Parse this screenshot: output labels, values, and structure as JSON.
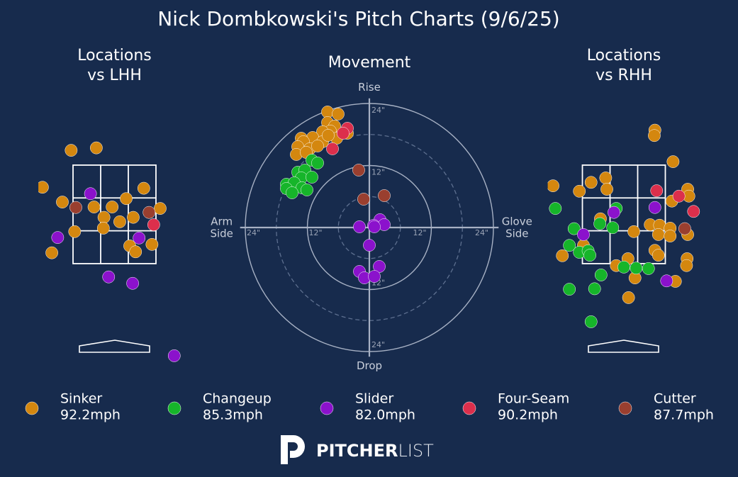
{
  "title": "Nick Dombkowski's Pitch Charts (9/6/25)",
  "legend": [
    {
      "name": "Sinker",
      "speed": "92.2mph",
      "color": "#d4870f"
    },
    {
      "name": "Changeup",
      "speed": "85.3mph",
      "color": "#16b52a"
    },
    {
      "name": "Slider",
      "speed": "82.0mph",
      "color": "#8b12cc"
    },
    {
      "name": "Four-Seam",
      "speed": "90.2mph",
      "color": "#dc2f4c"
    },
    {
      "name": "Cutter",
      "speed": "87.7mph",
      "color": "#9a3f2f"
    }
  ],
  "brand": {
    "bold": "PITCHER",
    "light": "LIST"
  },
  "chart_data": [
    {
      "type": "location",
      "title": [
        "Locations",
        "vs LHH"
      ],
      "xlim": [
        -1.3,
        1.3
      ],
      "ylim": [
        -0.6,
        4.6
      ],
      "strike_zone": {
        "x": [
          -0.708,
          0.708
        ],
        "y": [
          1.5,
          3.5
        ]
      },
      "series": [
        {
          "color": "#d4870f",
          "x": [
            -0.74,
            -0.31,
            -1.23,
            -0.89,
            -0.35,
            -0.04,
            0.2,
            0.5,
            0.78,
            -0.18,
            0.09,
            0.32,
            -0.19,
            -0.68,
            -1.07,
            0.26,
            0.36,
            0.64
          ],
          "y": [
            3.8,
            3.85,
            3.05,
            2.75,
            2.65,
            2.65,
            2.82,
            3.03,
            2.62,
            2.44,
            2.35,
            2.44,
            2.22,
            2.15,
            1.72,
            1.86,
            1.74,
            1.89
          ]
        },
        {
          "color": "#16b52a",
          "x": [],
          "y": []
        },
        {
          "color": "#8b12cc",
          "x": [
            -0.41,
            -0.97,
            0.42,
            -0.1,
            0.31,
            1.02
          ],
          "y": [
            2.92,
            2.03,
            2.02,
            1.23,
            1.1,
            -0.37
          ]
        },
        {
          "color": "#dc2f4c",
          "x": [
            0.67
          ],
          "y": [
            2.29
          ]
        },
        {
          "color": "#9a3f2f",
          "x": [
            -0.66,
            0.59
          ],
          "y": [
            2.64,
            2.54
          ]
        }
      ]
    },
    {
      "type": "movement",
      "title": "Movement",
      "xlim": [
        -25,
        25
      ],
      "ylim": [
        -25,
        25
      ],
      "labels": {
        "top": "Rise",
        "bottom": "Drop",
        "left": [
          "Arm",
          "Side"
        ],
        "right": [
          "Glove",
          "Side"
        ]
      },
      "rings": [
        {
          "value": 12,
          "label": "12\""
        },
        {
          "value": 24,
          "label": "24\""
        }
      ],
      "dashed_rings": [
        6,
        18
      ],
      "series": [
        {
          "color": "#d4870f",
          "x": [
            -8.09,
            -6.04,
            -8.09,
            -6.72,
            -4.25,
            -7.54,
            -9.05,
            -6.31,
            -10.97,
            -13.17,
            -12.76,
            -9.05,
            -13.85,
            -11.52,
            -14.13,
            -12.21,
            -10.01,
            -7.96
          ],
          "y": [
            22.36,
            21.95,
            20.3,
            19.62,
            18.24,
            18.66,
            18.52,
            17.28,
            17.42,
            17.28,
            16.6,
            16.6,
            15.64,
            15.23,
            14.13,
            14.54,
            15.78,
            17.83
          ]
        },
        {
          "color": "#16b52a",
          "x": [
            -11.11,
            -10.01,
            -13.85,
            -12.48,
            -13.17,
            -11.11,
            -16.05,
            -14.54,
            -13.03,
            -16.05,
            -14.95,
            -12.07
          ],
          "y": [
            13.03,
            12.48,
            10.7,
            11.11,
            9.6,
            9.74,
            8.37,
            8.64,
            7.68,
            7.54,
            6.72,
            7.27
          ]
        },
        {
          "color": "#8b12cc",
          "x": [
            2.06,
            0.82,
            2.88,
            -1.92,
            0.96,
            0.0,
            -1.92,
            1.92,
            -0.96,
            0.96
          ],
          "y": [
            1.51,
            0.41,
            0.55,
            0.14,
            0.14,
            -3.43,
            -8.5,
            -7.54,
            -9.74,
            -9.47
          ]
        },
        {
          "color": "#dc2f4c",
          "x": [
            -4.25,
            -5.08,
            -7.13
          ],
          "y": [
            19.2,
            18.24,
            15.23
          ]
        },
        {
          "color": "#9a3f2f",
          "x": [
            -2.06,
            -1.1,
            2.88
          ],
          "y": [
            11.11,
            5.49,
            6.17
          ]
        }
      ]
    },
    {
      "type": "location",
      "title": [
        "Locations",
        "vs RHH"
      ],
      "xlim": [
        -1.3,
        1.3
      ],
      "ylim": [
        -0.6,
        4.6
      ],
      "strike_zone": {
        "x": [
          -0.708,
          0.708
        ],
        "y": [
          1.5,
          3.5
        ]
      },
      "series": [
        {
          "color": "#d4870f",
          "x": [
            0.53,
            0.52,
            0.84,
            -1.21,
            -0.76,
            -0.56,
            -0.31,
            -0.29,
            0.82,
            1.09,
            1.11,
            -0.4,
            0.17,
            0.45,
            0.61,
            0.79,
            0.59,
            0.79,
            1.09,
            -0.69,
            -1.05,
            -0.13,
            0.07,
            0.19,
            0.53,
            0.59,
            1.08,
            1.07,
            0.88,
            0.08
          ],
          "y": [
            4.21,
            4.1,
            3.57,
            3.08,
            2.97,
            3.15,
            3.24,
            3.01,
            2.77,
            3.01,
            2.87,
            2.41,
            2.15,
            2.29,
            2.28,
            2.22,
            2.09,
            2.06,
            2.09,
            1.87,
            1.66,
            1.46,
            1.6,
            1.21,
            1.77,
            1.67,
            1.6,
            1.46,
            1.14,
            0.81
          ]
        },
        {
          "color": "#16b52a",
          "x": [
            -1.17,
            -0.13,
            -0.41,
            -0.19,
            -0.85,
            -0.93,
            -0.76,
            -0.61,
            -0.58,
            -0.39,
            0.0,
            0.21,
            0.42,
            -0.93,
            -0.5,
            -0.56
          ],
          "y": [
            2.62,
            2.62,
            2.31,
            2.23,
            2.21,
            1.87,
            1.73,
            1.76,
            1.67,
            1.27,
            1.43,
            1.41,
            1.4,
            0.98,
            0.99,
            0.32
          ]
        },
        {
          "color": "#8b12cc",
          "x": [
            -0.17,
            0.53,
            -0.69,
            0.73
          ],
          "y": [
            2.54,
            2.64,
            2.09,
            1.15
          ]
        },
        {
          "color": "#dc2f4c",
          "x": [
            0.56,
            0.94,
            1.19
          ],
          "y": [
            2.98,
            2.87,
            2.56
          ]
        },
        {
          "color": "#9a3f2f",
          "x": [
            1.04
          ],
          "y": [
            2.21
          ]
        }
      ]
    }
  ]
}
